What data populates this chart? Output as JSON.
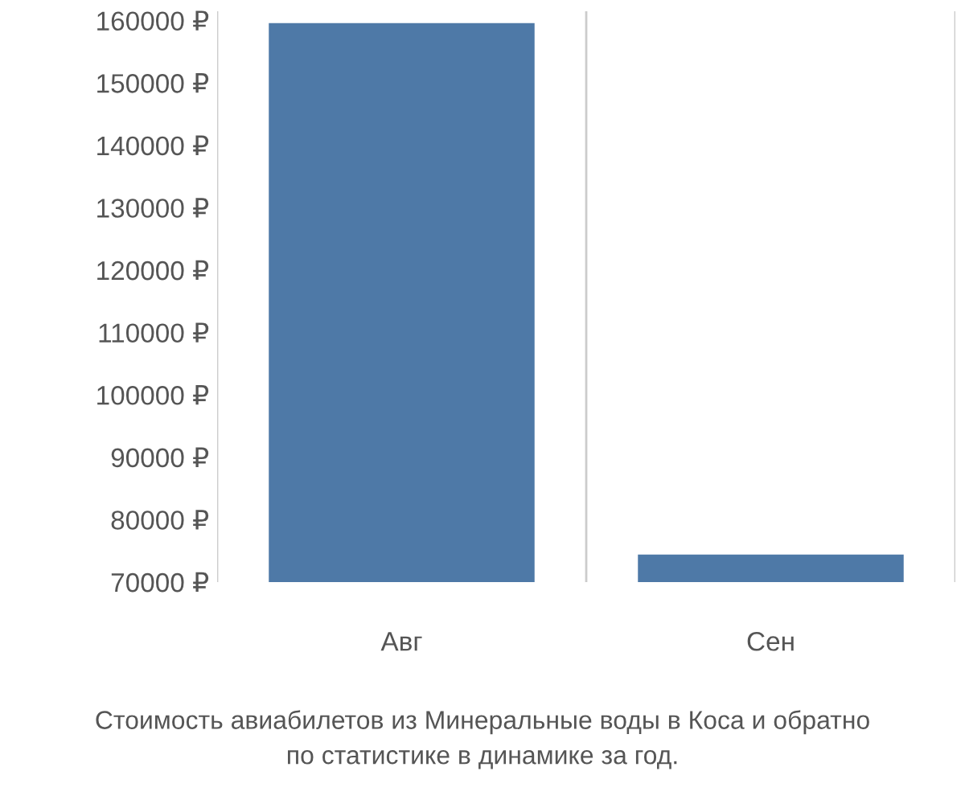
{
  "chart_data": {
    "type": "bar",
    "categories": [
      "Авг",
      "Сен"
    ],
    "values": [
      159600,
      74400
    ],
    "color": "#4e79a7",
    "ylim": [
      70000,
      161500
    ],
    "yticks": [
      {
        "value": 70000,
        "label": "70000 ₽"
      },
      {
        "value": 80000,
        "label": "80000 ₽"
      },
      {
        "value": 90000,
        "label": "90000 ₽"
      },
      {
        "value": 100000,
        "label": "100000 ₽"
      },
      {
        "value": 110000,
        "label": "110000 ₽"
      },
      {
        "value": 120000,
        "label": "120000 ₽"
      },
      {
        "value": 130000,
        "label": "130000 ₽"
      },
      {
        "value": 140000,
        "label": "140000 ₽"
      },
      {
        "value": 150000,
        "label": "150000 ₽"
      },
      {
        "value": 160000,
        "label": "160000 ₽"
      }
    ],
    "grid": "x",
    "annotations": [
      "Стоимость авиабилетов из Минеральные воды в Коса и обратно\nпо статистике в динамике за год."
    ]
  }
}
